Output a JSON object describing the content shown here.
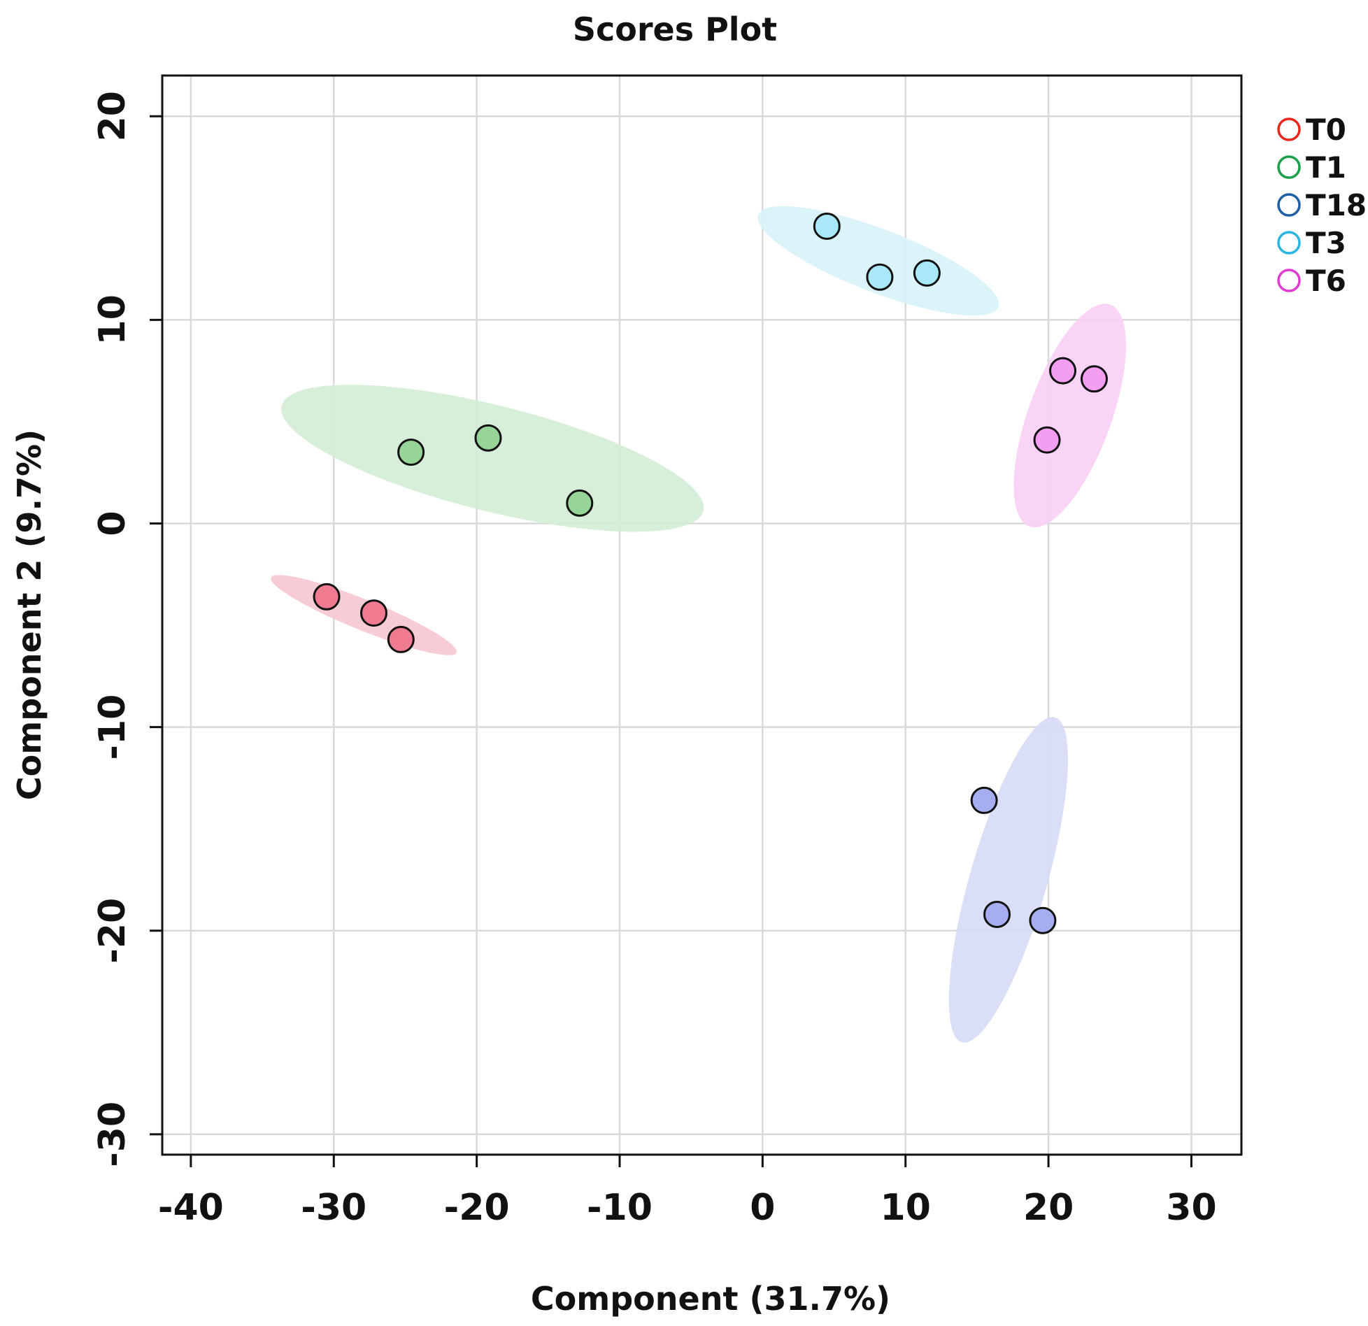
{
  "chart_data": {
    "type": "scatter",
    "title": "Scores Plot",
    "xlabel": "Component  (31.7%)",
    "ylabel": "Component  2 (9.7%)",
    "xlim": [
      -42,
      33.5
    ],
    "ylim": [
      -31,
      22
    ],
    "xticks": [
      -40,
      -30,
      -20,
      -10,
      0,
      10,
      20,
      30
    ],
    "yticks": [
      -30,
      -20,
      -10,
      0,
      10,
      20
    ],
    "xtick_labels": [
      "-40",
      "-30",
      "-20",
      "-10",
      "0",
      "10",
      "20",
      "30"
    ],
    "ytick_labels": [
      "-30",
      "-20",
      "-10",
      "0",
      "10",
      "20"
    ],
    "grid": true,
    "legend_position": "right-top",
    "series": [
      {
        "name": "T0",
        "legend_color": "#e8281f",
        "fill": "#f07a90",
        "ellipse_fill": "#f7c6d0",
        "points": [
          [
            -30.5,
            -3.6
          ],
          [
            -27.2,
            -4.4
          ],
          [
            -25.3,
            -5.7
          ]
        ],
        "ellipse": {
          "cx": -27.9,
          "cy": -4.5,
          "rx": 7.0,
          "ry": 0.75,
          "angle_deg": -22
        }
      },
      {
        "name": "T1",
        "legend_color": "#1a9f4a",
        "fill": "#97d497",
        "ellipse_fill": "#d3ecd4",
        "points": [
          [
            -24.6,
            3.5
          ],
          [
            -19.2,
            4.2
          ],
          [
            -12.8,
            1.0
          ]
        ],
        "ellipse": {
          "cx": -18.9,
          "cy": 3.2,
          "rx": 15.2,
          "ry": 2.6,
          "angle_deg": -14
        }
      },
      {
        "name": "T18",
        "legend_color": "#1f5fa8",
        "fill": "#a7aef0",
        "ellipse_fill": "#d6dbf6",
        "points": [
          [
            15.5,
            -13.6
          ],
          [
            16.4,
            -19.2
          ],
          [
            19.6,
            -19.5
          ]
        ],
        "ellipse": {
          "cx": 17.2,
          "cy": -17.5,
          "rx": 2.7,
          "ry": 8.3,
          "angle_deg": -16
        }
      },
      {
        "name": "T3",
        "legend_color": "#29b6e3",
        "fill": "#a8e8f8",
        "ellipse_fill": "#d6f3fa",
        "points": [
          [
            4.5,
            14.6
          ],
          [
            8.2,
            12.1
          ],
          [
            11.5,
            12.3
          ]
        ],
        "ellipse": {
          "cx": 8.1,
          "cy": 12.9,
          "rx": 9.0,
          "ry": 1.55,
          "angle_deg": -21
        }
      },
      {
        "name": "T6",
        "legend_color": "#e03ad0",
        "fill": "#f49ef2",
        "ellipse_fill": "#f8cff6",
        "points": [
          [
            21.0,
            7.5
          ],
          [
            23.2,
            7.1
          ],
          [
            19.9,
            4.1
          ]
        ],
        "ellipse": {
          "cx": 21.5,
          "cy": 5.3,
          "rx": 2.9,
          "ry": 5.8,
          "angle_deg": -20
        }
      }
    ]
  }
}
